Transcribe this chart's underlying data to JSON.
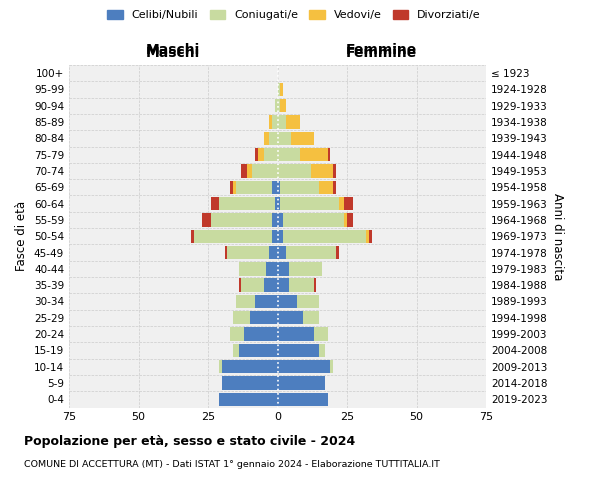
{
  "age_groups": [
    "0-4",
    "5-9",
    "10-14",
    "15-19",
    "20-24",
    "25-29",
    "30-34",
    "35-39",
    "40-44",
    "45-49",
    "50-54",
    "55-59",
    "60-64",
    "65-69",
    "70-74",
    "75-79",
    "80-84",
    "85-89",
    "90-94",
    "95-99",
    "100+"
  ],
  "birth_years": [
    "2019-2023",
    "2014-2018",
    "2009-2013",
    "2004-2008",
    "1999-2003",
    "1994-1998",
    "1989-1993",
    "1984-1988",
    "1979-1983",
    "1974-1978",
    "1969-1973",
    "1964-1968",
    "1959-1963",
    "1954-1958",
    "1949-1953",
    "1944-1948",
    "1939-1943",
    "1934-1938",
    "1929-1933",
    "1924-1928",
    "≤ 1923"
  ],
  "colors": {
    "celibi": "#4d7ebf",
    "coniugati": "#c8dba0",
    "vedovi": "#f5c040",
    "divorziati": "#c0392b"
  },
  "males": {
    "celibi": [
      21,
      20,
      20,
      14,
      12,
      10,
      8,
      5,
      4,
      3,
      2,
      2,
      1,
      2,
      0,
      0,
      0,
      0,
      0,
      0,
      0
    ],
    "coniugati": [
      0,
      0,
      1,
      2,
      5,
      6,
      7,
      8,
      10,
      15,
      28,
      22,
      20,
      13,
      9,
      5,
      3,
      2,
      1,
      0,
      0
    ],
    "vedovi": [
      0,
      0,
      0,
      0,
      0,
      0,
      0,
      0,
      0,
      0,
      0,
      0,
      0,
      1,
      2,
      2,
      2,
      1,
      0,
      0,
      0
    ],
    "divorziati": [
      0,
      0,
      0,
      0,
      0,
      0,
      0,
      1,
      0,
      1,
      1,
      3,
      3,
      1,
      2,
      1,
      0,
      0,
      0,
      0,
      0
    ]
  },
  "females": {
    "celibi": [
      18,
      17,
      19,
      15,
      13,
      9,
      7,
      4,
      4,
      3,
      2,
      2,
      1,
      1,
      0,
      0,
      0,
      0,
      0,
      0,
      0
    ],
    "coniugati": [
      0,
      0,
      1,
      2,
      5,
      6,
      8,
      9,
      12,
      18,
      30,
      22,
      21,
      14,
      12,
      8,
      5,
      3,
      1,
      1,
      0
    ],
    "vedovi": [
      0,
      0,
      0,
      0,
      0,
      0,
      0,
      0,
      0,
      0,
      1,
      1,
      2,
      5,
      8,
      10,
      8,
      5,
      2,
      1,
      0
    ],
    "divorziati": [
      0,
      0,
      0,
      0,
      0,
      0,
      0,
      1,
      0,
      1,
      1,
      2,
      3,
      1,
      1,
      1,
      0,
      0,
      0,
      0,
      0
    ]
  },
  "xlim": 75,
  "title": "Popolazione per età, sesso e stato civile - 2024",
  "subtitle": "COMUNE DI ACCETTURA (MT) - Dati ISTAT 1° gennaio 2024 - Elaborazione TUTTITALIA.IT",
  "label_maschi": "Maschi",
  "label_femmine": "Femmine",
  "xlabel_fasce": "Fasce di età",
  "xlabel_anni": "Anni di nascita",
  "bg_color": "#f0f0f0"
}
